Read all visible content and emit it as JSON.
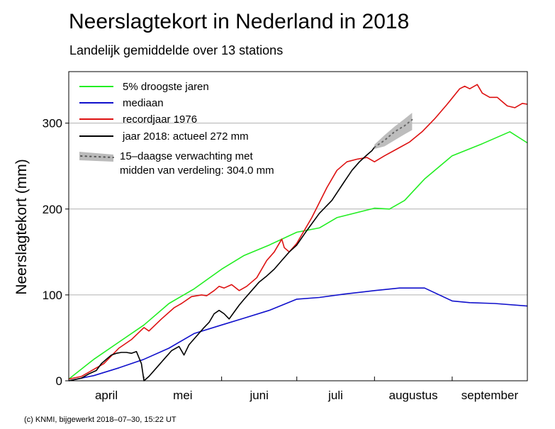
{
  "chart_data": {
    "type": "line",
    "title": "Neerslagtekort in Nederland in 2018",
    "subtitle": "Landelijk gemiddelde over 13 stations",
    "ylabel": "Neerslagtekort (mm)",
    "xlabel": "",
    "ylim": [
      0,
      360
    ],
    "yticks": [
      0,
      100,
      200,
      300
    ],
    "xlim": [
      0,
      183
    ],
    "month_ticks": [
      {
        "label": "april",
        "start": 0,
        "end": 30
      },
      {
        "label": "mei",
        "start": 30,
        "end": 61
      },
      {
        "label": "juni",
        "start": 61,
        "end": 91
      },
      {
        "label": "juli",
        "start": 91,
        "end": 122
      },
      {
        "label": "augustus",
        "start": 122,
        "end": 153
      },
      {
        "label": "september",
        "start": 153,
        "end": 183
      }
    ],
    "legend": [
      {
        "label": "5% droogste jaren",
        "color": "#22ee22",
        "style": "line"
      },
      {
        "label": "mediaan",
        "color": "#1010cc",
        "style": "line"
      },
      {
        "label": "recordjaar 1976",
        "color": "#dd1111",
        "style": "line"
      },
      {
        "label": "jaar 2018: actueel 272 mm",
        "color": "#000000",
        "style": "line"
      },
      {
        "label": "15–daagse verwachting met",
        "label2": "midden van verdeling: 304.0 mm",
        "color": "#bbbbbb",
        "style": "band"
      }
    ],
    "series": [
      {
        "name": "5% droogste jaren",
        "color": "#22ee22",
        "points": [
          [
            0,
            2
          ],
          [
            10,
            25
          ],
          [
            20,
            45
          ],
          [
            30,
            65
          ],
          [
            40,
            90
          ],
          [
            50,
            107
          ],
          [
            61,
            130
          ],
          [
            70,
            146
          ],
          [
            80,
            158
          ],
          [
            91,
            173
          ],
          [
            100,
            178
          ],
          [
            107,
            190
          ],
          [
            122,
            201
          ],
          [
            128,
            200
          ],
          [
            134,
            210
          ],
          [
            142,
            235
          ],
          [
            153,
            262
          ],
          [
            165,
            276
          ],
          [
            176,
            290
          ],
          [
            183,
            277
          ]
        ]
      },
      {
        "name": "mediaan",
        "color": "#1010cc",
        "points": [
          [
            0,
            0
          ],
          [
            10,
            6
          ],
          [
            20,
            15
          ],
          [
            30,
            25
          ],
          [
            40,
            38
          ],
          [
            50,
            55
          ],
          [
            61,
            65
          ],
          [
            70,
            73
          ],
          [
            80,
            82
          ],
          [
            91,
            95
          ],
          [
            100,
            97
          ],
          [
            110,
            101
          ],
          [
            122,
            105
          ],
          [
            132,
            108
          ],
          [
            142,
            108
          ],
          [
            153,
            93
          ],
          [
            160,
            91
          ],
          [
            170,
            90
          ],
          [
            183,
            87
          ]
        ]
      },
      {
        "name": "recordjaar 1976",
        "color": "#dd1111",
        "points": [
          [
            0,
            2
          ],
          [
            5,
            5
          ],
          [
            8,
            10
          ],
          [
            14,
            20
          ],
          [
            20,
            38
          ],
          [
            25,
            48
          ],
          [
            30,
            62
          ],
          [
            32,
            58
          ],
          [
            37,
            72
          ],
          [
            42,
            85
          ],
          [
            45,
            90
          ],
          [
            49,
            98
          ],
          [
            53,
            100
          ],
          [
            55,
            99
          ],
          [
            58,
            105
          ],
          [
            60,
            110
          ],
          [
            62,
            108
          ],
          [
            65,
            112
          ],
          [
            68,
            105
          ],
          [
            71,
            110
          ],
          [
            75,
            120
          ],
          [
            79,
            140
          ],
          [
            82,
            150
          ],
          [
            85,
            165
          ],
          [
            86,
            155
          ],
          [
            88,
            150
          ],
          [
            91,
            160
          ],
          [
            97,
            190
          ],
          [
            103,
            225
          ],
          [
            107,
            245
          ],
          [
            111,
            255
          ],
          [
            115,
            258
          ],
          [
            119,
            260
          ],
          [
            122,
            255
          ],
          [
            126,
            262
          ],
          [
            131,
            270
          ],
          [
            136,
            278
          ],
          [
            141,
            290
          ],
          [
            146,
            305
          ],
          [
            151,
            322
          ],
          [
            156,
            340
          ],
          [
            158,
            343
          ],
          [
            160,
            340
          ],
          [
            163,
            345
          ],
          [
            165,
            335
          ],
          [
            168,
            330
          ],
          [
            171,
            330
          ],
          [
            173,
            325
          ],
          [
            175,
            320
          ],
          [
            178,
            318
          ],
          [
            181,
            323
          ],
          [
            183,
            322
          ]
        ]
      },
      {
        "name": "jaar 2018",
        "color": "#000000",
        "points": [
          [
            0,
            0
          ],
          [
            5,
            3
          ],
          [
            8,
            8
          ],
          [
            11,
            12
          ],
          [
            13,
            20
          ],
          [
            15,
            25
          ],
          [
            17,
            30
          ],
          [
            19,
            32
          ],
          [
            21,
            33
          ],
          [
            23,
            33
          ],
          [
            25,
            32
          ],
          [
            27,
            34
          ],
          [
            29,
            20
          ],
          [
            30,
            0
          ],
          [
            32,
            5
          ],
          [
            35,
            15
          ],
          [
            38,
            25
          ],
          [
            41,
            35
          ],
          [
            44,
            40
          ],
          [
            46,
            30
          ],
          [
            48,
            42
          ],
          [
            51,
            52
          ],
          [
            54,
            62
          ],
          [
            56,
            68
          ],
          [
            58,
            78
          ],
          [
            60,
            82
          ],
          [
            62,
            78
          ],
          [
            64,
            72
          ],
          [
            66,
            80
          ],
          [
            68,
            88
          ],
          [
            70,
            95
          ],
          [
            73,
            105
          ],
          [
            76,
            115
          ],
          [
            79,
            122
          ],
          [
            82,
            130
          ],
          [
            85,
            140
          ],
          [
            88,
            150
          ],
          [
            91,
            158
          ],
          [
            95,
            175
          ],
          [
            100,
            195
          ],
          [
            105,
            210
          ],
          [
            110,
            232
          ],
          [
            113,
            245
          ],
          [
            116,
            255
          ],
          [
            119,
            263
          ],
          [
            121,
            268
          ],
          [
            122,
            272
          ]
        ]
      },
      {
        "name": "15-daagse verwachting",
        "color": "#666666",
        "dotted": true,
        "points": [
          [
            122,
            272
          ],
          [
            126,
            280
          ],
          [
            130,
            290
          ],
          [
            134,
            297
          ],
          [
            137,
            304
          ]
        ]
      }
    ],
    "forecast_band": {
      "x": [
        122,
        126,
        130,
        134,
        137
      ],
      "low": [
        270,
        273,
        280,
        287,
        292
      ],
      "high": [
        275,
        286,
        296,
        305,
        312
      ]
    }
  },
  "credit": "(c) KNMI, bijgewerkt 2018–07–30, 15:22 UT"
}
